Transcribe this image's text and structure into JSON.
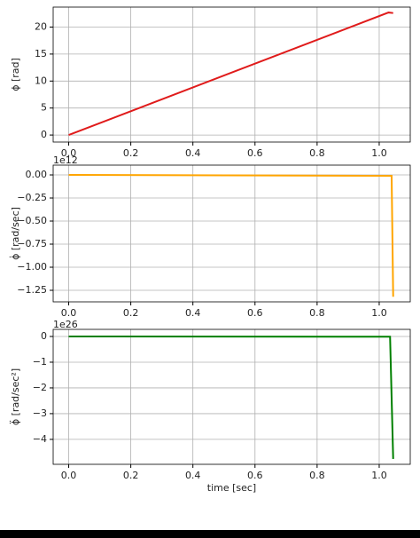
{
  "chart_data": [
    {
      "type": "line",
      "ylabel": "ϕ [rad]",
      "x": [
        0,
        1.03,
        1.045
      ],
      "series": [
        {
          "color": "#e01b1b",
          "values": [
            0,
            22.7,
            22.6
          ]
        }
      ],
      "xlim": [
        -0.05,
        1.1
      ],
      "xticks": [
        {
          "value": 0,
          "label": "0.0"
        },
        {
          "value": 0.2,
          "label": "0.2"
        },
        {
          "value": 0.4,
          "label": "0.4"
        },
        {
          "value": 0.6,
          "label": "0.6"
        },
        {
          "value": 0.8,
          "label": "0.8"
        },
        {
          "value": 1,
          "label": "1.0"
        }
      ],
      "ylim": [
        -1.3,
        23.7
      ],
      "yticks": [
        0,
        5,
        10,
        15,
        20
      ],
      "grid": true
    },
    {
      "type": "line",
      "ylabel": "ϕ̇ [rad/sec]",
      "offset_text": "1e12",
      "x": [
        0,
        1.04,
        1.045
      ],
      "series": [
        {
          "color": "#ffa500",
          "values": [
            0,
            -0.01,
            -1.32
          ]
        }
      ],
      "xlim": [
        -0.05,
        1.1
      ],
      "xticks": [
        {
          "value": 0,
          "label": "0.0"
        },
        {
          "value": 0.2,
          "label": "0.2"
        },
        {
          "value": 0.4,
          "label": "0.4"
        },
        {
          "value": 0.6,
          "label": "0.6"
        },
        {
          "value": 0.8,
          "label": "0.8"
        },
        {
          "value": 1,
          "label": "1.0"
        }
      ],
      "ylim": [
        -1.375,
        0.106
      ],
      "yticks": [
        {
          "value": 0,
          "label": "0.00"
        },
        {
          "value": -0.25,
          "label": "−0.25"
        },
        {
          "value": -0.5,
          "label": "−0.50"
        },
        {
          "value": -0.75,
          "label": "−0.75"
        },
        {
          "value": -1,
          "label": "−1.00"
        },
        {
          "value": -1.25,
          "label": "−1.25"
        }
      ],
      "grid": true
    },
    {
      "type": "line",
      "ylabel": "ϕ̈ [rad/sec²]",
      "offset_text": "1e26",
      "xlabel": "time [sec]",
      "x": [
        0,
        1.035,
        1.045
      ],
      "series": [
        {
          "color": "#008000",
          "values": [
            0,
            -0.01,
            -4.76
          ]
        }
      ],
      "xlim": [
        -0.05,
        1.1
      ],
      "xticks": [
        {
          "value": 0,
          "label": "0.0"
        },
        {
          "value": 0.2,
          "label": "0.2"
        },
        {
          "value": 0.4,
          "label": "0.4"
        },
        {
          "value": 0.6,
          "label": "0.6"
        },
        {
          "value": 0.8,
          "label": "0.8"
        },
        {
          "value": 1,
          "label": "1.0"
        }
      ],
      "ylim": [
        -4.97,
        0.276
      ],
      "yticks": [
        0,
        {
          "value": -1,
          "label": "−1"
        },
        {
          "value": -2,
          "label": "−2"
        },
        {
          "value": -3,
          "label": "−3"
        },
        {
          "value": -4,
          "label": "−4"
        }
      ],
      "grid": true
    }
  ]
}
